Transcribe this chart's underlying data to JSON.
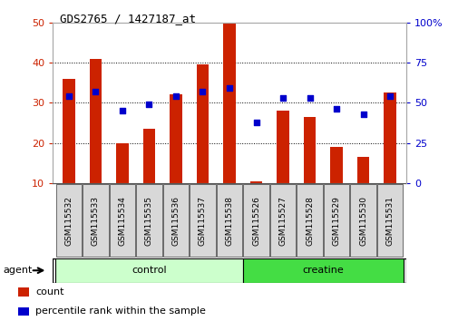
{
  "title": "GDS2765 / 1427187_at",
  "samples": [
    "GSM115532",
    "GSM115533",
    "GSM115534",
    "GSM115535",
    "GSM115536",
    "GSM115537",
    "GSM115538",
    "GSM115526",
    "GSM115527",
    "GSM115528",
    "GSM115529",
    "GSM115530",
    "GSM115531"
  ],
  "count_values": [
    36,
    41,
    20,
    23.5,
    32,
    39.5,
    50,
    10.5,
    28,
    26.5,
    19,
    16.5,
    32.5
  ],
  "percentile_values": [
    54,
    57,
    45,
    49,
    54,
    57,
    59,
    38,
    53,
    53,
    46,
    43,
    54
  ],
  "ylim_left": [
    10,
    50
  ],
  "ylim_right": [
    0,
    100
  ],
  "yticks_left": [
    10,
    20,
    30,
    40,
    50
  ],
  "yticks_right": [
    0,
    25,
    50,
    75,
    100
  ],
  "groups": [
    {
      "label": "control",
      "start": 0,
      "end": 7,
      "color": "#ccffcc"
    },
    {
      "label": "creatine",
      "start": 7,
      "end": 13,
      "color": "#44dd44"
    }
  ],
  "agent_label": "agent",
  "bar_color": "#cc2200",
  "dot_color": "#0000cc",
  "tick_label_color_left": "#cc2200",
  "tick_label_color_right": "#0000cc",
  "legend_items": [
    {
      "label": "count",
      "color": "#cc2200"
    },
    {
      "label": "percentile rank within the sample",
      "color": "#0000cc"
    }
  ],
  "bar_width": 0.45,
  "dot_size": 25,
  "background_color": "#ffffff",
  "plot_bg_color": "#ffffff"
}
